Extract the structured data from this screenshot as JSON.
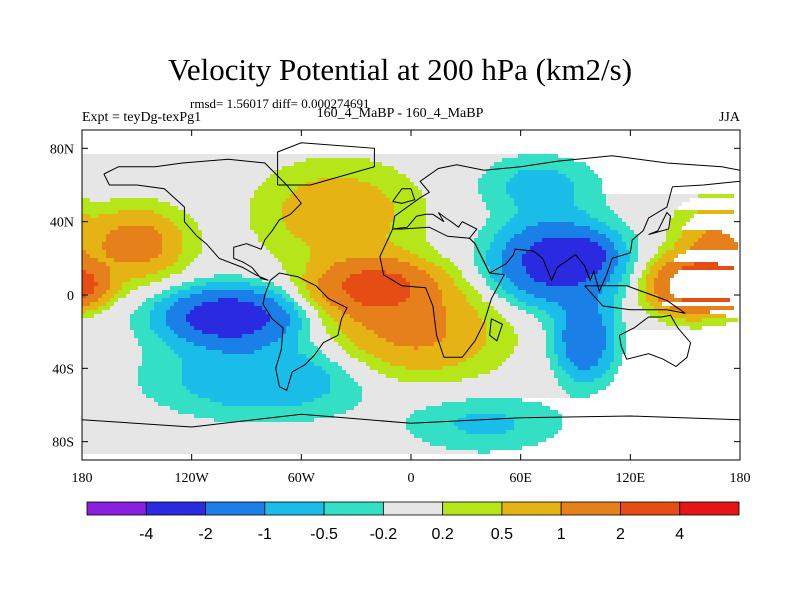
{
  "header": {
    "title": "Velocity Potential at 200 hPa (km2/s)",
    "stats": "rmsd= 1.56017 diff= 0.000274691",
    "left_label": "Expt = teyDg-texPg1",
    "center_label": "160_4_MaBP - 160_4_MaBP",
    "right_label": "JJA"
  },
  "chart_data": {
    "type": "heatmap",
    "title": "Velocity Potential at 200 hPa (km2/s)",
    "x_axis": {
      "range": [
        -180,
        180
      ],
      "ticks": [
        -180,
        -120,
        -60,
        0,
        60,
        120,
        180
      ],
      "tick_labels": [
        "180",
        "120W",
        "60W",
        "0",
        "60E",
        "120E",
        "180"
      ]
    },
    "y_axis": {
      "range": [
        -90,
        90
      ],
      "ticks": [
        80,
        40,
        0,
        -40,
        -80
      ],
      "tick_labels": [
        "80N",
        "40N",
        "0",
        "40S",
        "80S"
      ]
    },
    "colorbar": {
      "boundaries": [
        "-4",
        "-2",
        "-1",
        "-0.5",
        "-0.2",
        "0.2",
        "0.5",
        "1",
        "2",
        "4"
      ],
      "colors": [
        "#8a1fe0",
        "#2a2ae0",
        "#1a7fe6",
        "#19bde8",
        "#33e0c6",
        "#e6e6e6",
        "#b5e619",
        "#e6b314",
        "#e6801a",
        "#e64d14",
        "#e61414"
      ]
    },
    "field_centers": [
      {
        "lon": -100,
        "lat": -12,
        "value": -3.2,
        "spread_lon": 32,
        "spread_lat": 14
      },
      {
        "lon": -80,
        "lat": -45,
        "value": -1.0,
        "spread_lon": 55,
        "spread_lat": 20
      },
      {
        "lon": 80,
        "lat": 18,
        "value": -3.0,
        "spread_lon": 30,
        "spread_lat": 20
      },
      {
        "lon": 95,
        "lat": 22,
        "value": -1.5,
        "spread_lon": 12,
        "spread_lat": 8
      },
      {
        "lon": 95,
        "lat": -25,
        "value": -1.8,
        "spread_lon": 15,
        "spread_lat": 20
      },
      {
        "lon": 70,
        "lat": 60,
        "value": -0.7,
        "spread_lon": 30,
        "spread_lat": 15
      },
      {
        "lon": 40,
        "lat": -70,
        "value": -0.6,
        "spread_lon": 40,
        "spread_lat": 15
      },
      {
        "lon": -20,
        "lat": 5,
        "value": 2.4,
        "spread_lon": 30,
        "spread_lat": 14
      },
      {
        "lon": 0,
        "lat": -20,
        "value": 1.2,
        "spread_lon": 45,
        "spread_lat": 25
      },
      {
        "lon": -40,
        "lat": 45,
        "value": 0.9,
        "spread_lon": 40,
        "spread_lat": 25
      },
      {
        "lon": -150,
        "lat": 28,
        "value": 1.4,
        "spread_lon": 25,
        "spread_lat": 18
      },
      {
        "lon": -180,
        "lat": 5,
        "value": 2.0,
        "spread_lon": 15,
        "spread_lat": 10
      },
      {
        "lon": 155,
        "lat": 5,
        "value": 3.0,
        "spread_lon": 22,
        "spread_lat": 14
      },
      {
        "lon": 165,
        "lat": 30,
        "value": 1.0,
        "spread_lon": 20,
        "spread_lat": 20
      }
    ]
  }
}
